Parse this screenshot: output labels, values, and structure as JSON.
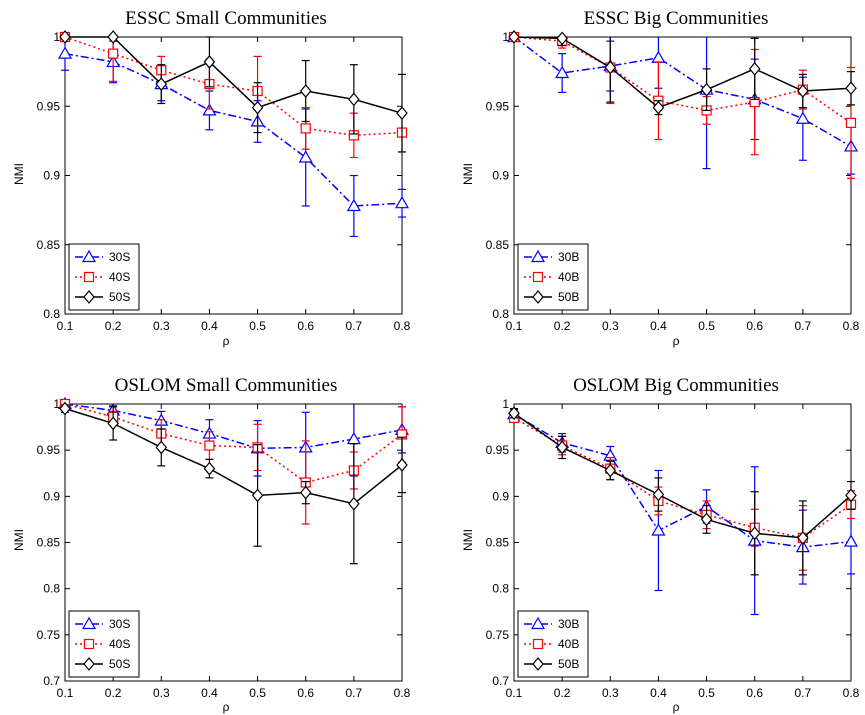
{
  "chart_data": [
    {
      "type": "line",
      "title": "ESSC Small Communities",
      "xlabel": "ρ",
      "ylabel": "NMI",
      "x": [
        0.1,
        0.2,
        0.3,
        0.4,
        0.5,
        0.6,
        0.7,
        0.8
      ],
      "xticks": [
        "0.1",
        "0.2",
        "0.3",
        "0.4",
        "0.5",
        "0.6",
        "0.7",
        "0.8"
      ],
      "yticks": [
        "0.8",
        "0.85",
        "0.9",
        "0.95",
        "1"
      ],
      "xlim": [
        0.1,
        0.8
      ],
      "ylim": [
        0.8,
        1.0
      ],
      "grid": false,
      "legend_position": "bottom-left",
      "series": [
        {
          "name": "30S",
          "color": "#0000ff",
          "marker": "triangle",
          "style": "dashdot",
          "values": [
            0.988,
            0.982,
            0.966,
            0.947,
            0.939,
            0.913,
            0.878,
            0.88
          ],
          "err": [
            0.012,
            0.015,
            0.012,
            0.014,
            0.015,
            0.035,
            0.022,
            0.01
          ]
        },
        {
          "name": "40S",
          "color": "#ff0000",
          "marker": "square",
          "style": "dotted",
          "values": [
            1.0,
            0.988,
            0.976,
            0.966,
            0.961,
            0.934,
            0.929,
            0.931
          ],
          "err": [
            0.0,
            0.02,
            0.01,
            0.018,
            0.025,
            0.015,
            0.016,
            0.014
          ]
        },
        {
          "name": "50S",
          "color": "#000000",
          "marker": "diamond",
          "style": "solid",
          "values": [
            1.0,
            1.0,
            0.966,
            0.982,
            0.949,
            0.961,
            0.955,
            0.945
          ],
          "err": [
            0.0,
            0.0,
            0.014,
            0.018,
            0.018,
            0.022,
            0.025,
            0.028
          ]
        }
      ]
    },
    {
      "type": "line",
      "title": "ESSC Big Communities",
      "xlabel": "ρ",
      "ylabel": "NMI",
      "x": [
        0.1,
        0.2,
        0.3,
        0.4,
        0.5,
        0.6,
        0.7,
        0.8
      ],
      "xticks": [
        "0.1",
        "0.2",
        "0.3",
        "0.4",
        "0.5",
        "0.6",
        "0.7",
        "0.8"
      ],
      "yticks": [
        "0.8",
        "0.85",
        "0.9",
        "0.95",
        "1"
      ],
      "xlim": [
        0.1,
        0.8
      ],
      "ylim": [
        0.8,
        1.0
      ],
      "grid": false,
      "legend_position": "bottom-left",
      "series": [
        {
          "name": "30B",
          "color": "#0000ff",
          "marker": "triangle",
          "style": "dashdot",
          "values": [
            1.0,
            0.974,
            0.979,
            0.985,
            0.962,
            0.955,
            0.941,
            0.921
          ],
          "err": [
            0.0,
            0.014,
            0.018,
            0.022,
            0.057,
            0.029,
            0.03,
            0.02
          ]
        },
        {
          "name": "40B",
          "color": "#ff0000",
          "marker": "square",
          "style": "dotted",
          "values": [
            1.0,
            0.997,
            0.978,
            0.954,
            0.947,
            0.953,
            0.962,
            0.938
          ],
          "err": [
            0.0,
            0.005,
            0.026,
            0.028,
            0.01,
            0.038,
            0.014,
            0.04
          ]
        },
        {
          "name": "50B",
          "color": "#000000",
          "marker": "diamond",
          "style": "solid",
          "values": [
            1.0,
            0.999,
            0.978,
            0.949,
            0.962,
            0.977,
            0.961,
            0.963
          ],
          "err": [
            0.0,
            0.005,
            0.025,
            0.005,
            0.015,
            0.022,
            0.012,
            0.012
          ]
        }
      ]
    },
    {
      "type": "line",
      "title": "OSLOM Small Communities",
      "xlabel": "ρ",
      "ylabel": "NMI",
      "x": [
        0.1,
        0.2,
        0.3,
        0.4,
        0.5,
        0.6,
        0.7,
        0.8
      ],
      "xticks": [
        "0.1",
        "0.2",
        "0.3",
        "0.4",
        "0.5",
        "0.6",
        "0.7",
        "0.8"
      ],
      "yticks": [
        "0.7",
        "0.75",
        "0.8",
        "0.85",
        "0.9",
        "0.95",
        "1"
      ],
      "xlim": [
        0.1,
        0.8
      ],
      "ylim": [
        0.7,
        1.0
      ],
      "grid": false,
      "legend_position": "bottom-left",
      "series": [
        {
          "name": "30S",
          "color": "#0000ff",
          "marker": "triangle",
          "style": "dashdot",
          "values": [
            1.0,
            0.993,
            0.982,
            0.968,
            0.952,
            0.953,
            0.962,
            0.972
          ],
          "err": [
            0.0,
            0.005,
            0.01,
            0.015,
            0.03,
            0.038,
            0.04,
            0.025
          ]
        },
        {
          "name": "40S",
          "color": "#ff0000",
          "marker": "square",
          "style": "dotted",
          "values": [
            1.0,
            0.986,
            0.968,
            0.955,
            0.953,
            0.915,
            0.928,
            0.967
          ],
          "err": [
            0.0,
            0.006,
            0.015,
            0.015,
            0.025,
            0.045,
            0.02,
            0.03
          ]
        },
        {
          "name": "50S",
          "color": "#000000",
          "marker": "diamond",
          "style": "solid",
          "values": [
            0.995,
            0.979,
            0.953,
            0.93,
            0.901,
            0.904,
            0.892,
            0.934
          ],
          "err": [
            0.004,
            0.018,
            0.02,
            0.01,
            0.055,
            0.012,
            0.065,
            0.03
          ]
        }
      ]
    },
    {
      "type": "line",
      "title": "OSLOM Big Communities",
      "xlabel": "ρ",
      "ylabel": "NMI",
      "x": [
        0.1,
        0.2,
        0.3,
        0.4,
        0.5,
        0.6,
        0.7,
        0.8
      ],
      "xticks": [
        "0.1",
        "0.2",
        "0.3",
        "0.4",
        "0.5",
        "0.6",
        "0.7",
        "0.8"
      ],
      "yticks": [
        "0.7",
        "0.75",
        "0.8",
        "0.85",
        "0.9",
        "0.95",
        "1"
      ],
      "xlim": [
        0.1,
        0.8
      ],
      "ylim": [
        0.7,
        1.0
      ],
      "grid": false,
      "legend_position": "bottom-left",
      "series": [
        {
          "name": "30B",
          "color": "#0000ff",
          "marker": "triangle",
          "style": "dashdot",
          "values": [
            0.989,
            0.958,
            0.944,
            0.863,
            0.889,
            0.852,
            0.845,
            0.851
          ],
          "err": [
            0.005,
            0.01,
            0.01,
            0.065,
            0.018,
            0.08,
            0.04,
            0.035
          ]
        },
        {
          "name": "40B",
          "color": "#ff0000",
          "marker": "square",
          "style": "dotted",
          "values": [
            0.985,
            0.955,
            0.93,
            0.895,
            0.88,
            0.866,
            0.855,
            0.891
          ],
          "err": [
            0.005,
            0.01,
            0.012,
            0.015,
            0.015,
            0.02,
            0.035,
            0.015
          ]
        },
        {
          "name": "50B",
          "color": "#000000",
          "marker": "diamond",
          "style": "solid",
          "values": [
            0.99,
            0.953,
            0.928,
            0.902,
            0.875,
            0.86,
            0.855,
            0.901
          ],
          "err": [
            0.005,
            0.012,
            0.01,
            0.018,
            0.015,
            0.045,
            0.04,
            0.015
          ]
        }
      ]
    }
  ]
}
